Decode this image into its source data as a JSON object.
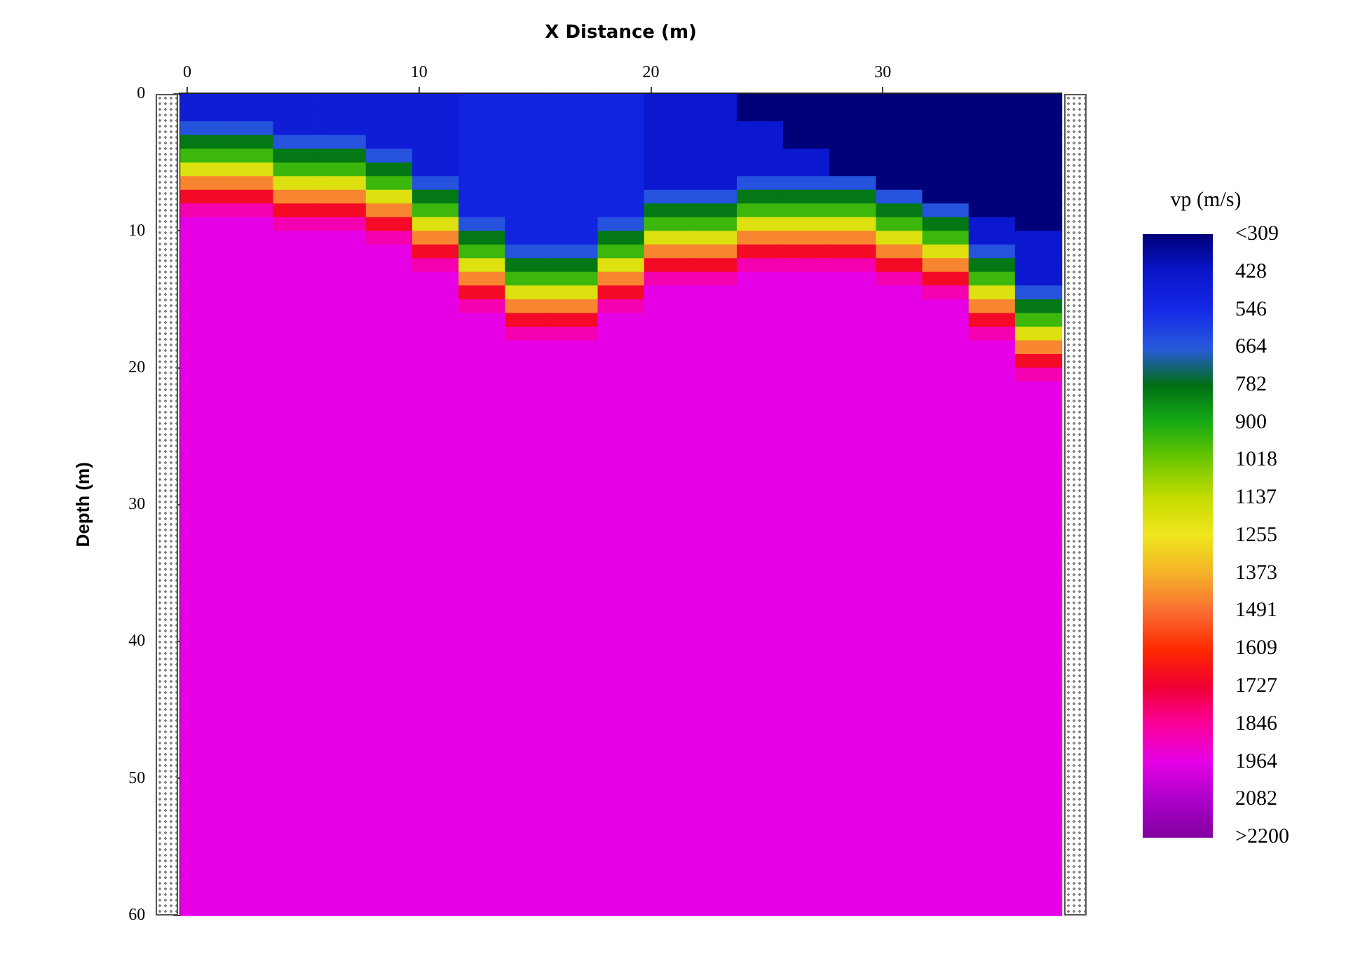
{
  "chart_data": {
    "type": "heatmap",
    "xlabel": "X Distance (m)",
    "ylabel": "Depth (m)",
    "clabel": "vp (m/s)",
    "x": [
      0.7,
      2.7,
      4.7,
      6.7,
      8.7,
      10.7,
      12.7,
      14.7,
      16.7,
      18.7,
      20.7,
      22.7,
      24.7,
      26.7,
      28.7,
      30.7,
      32.7,
      34.7,
      36.7
    ],
    "xlim": [
      -0.3,
      37.7
    ],
    "xticks": [
      0,
      10,
      20,
      30
    ],
    "ylim": [
      60,
      0
    ],
    "yticks": [
      0,
      10,
      20,
      30,
      40,
      50,
      60
    ],
    "clim": [
      309,
      2200
    ],
    "cticks": [
      {
        "value": 309,
        "label": "<309"
      },
      428,
      546,
      664,
      782,
      900,
      1018,
      1137,
      1255,
      1373,
      1491,
      1609,
      1727,
      1846,
      1964,
      2082,
      {
        "value": 2200,
        "label": ">2200"
      }
    ],
    "cells": [
      [
        480,
        480,
        480,
        480,
        480,
        480,
        520,
        520,
        520,
        520,
        450,
        450,
        300,
        300,
        300,
        300,
        300,
        300,
        300
      ],
      [
        480,
        480,
        480,
        480,
        480,
        480,
        520,
        520,
        520,
        520,
        450,
        450,
        300,
        300,
        300,
        300,
        300,
        300,
        300
      ],
      [
        650,
        650,
        480,
        480,
        480,
        480,
        520,
        520,
        520,
        520,
        450,
        450,
        450,
        300,
        300,
        300,
        300,
        300,
        300
      ],
      [
        800,
        800,
        650,
        650,
        480,
        480,
        520,
        520,
        520,
        520,
        450,
        450,
        450,
        300,
        300,
        300,
        300,
        300,
        300
      ],
      [
        950,
        950,
        800,
        800,
        650,
        480,
        520,
        520,
        520,
        520,
        450,
        450,
        450,
        450,
        300,
        300,
        300,
        300,
        300
      ],
      [
        1200,
        1200,
        950,
        950,
        800,
        480,
        520,
        520,
        520,
        520,
        450,
        450,
        450,
        450,
        300,
        300,
        300,
        300,
        300
      ],
      [
        1450,
        1450,
        1200,
        1200,
        950,
        650,
        520,
        520,
        520,
        520,
        450,
        450,
        650,
        650,
        650,
        300,
        300,
        300,
        300
      ],
      [
        1700,
        1700,
        1450,
        1450,
        1200,
        800,
        520,
        520,
        520,
        520,
        650,
        650,
        800,
        800,
        800,
        650,
        300,
        300,
        300
      ],
      [
        1880,
        1880,
        1700,
        1700,
        1450,
        950,
        520,
        520,
        520,
        520,
        800,
        800,
        950,
        950,
        950,
        800,
        650,
        300,
        300
      ],
      [
        1964,
        1964,
        1880,
        1880,
        1700,
        1200,
        650,
        520,
        520,
        650,
        950,
        950,
        1200,
        1200,
        1200,
        950,
        800,
        450,
        300
      ],
      [
        1964,
        1964,
        1964,
        1964,
        1880,
        1450,
        800,
        520,
        520,
        800,
        1200,
        1200,
        1450,
        1450,
        1450,
        1200,
        950,
        450,
        450
      ],
      [
        1964,
        1964,
        1964,
        1964,
        1964,
        1700,
        950,
        650,
        650,
        950,
        1450,
        1450,
        1700,
        1700,
        1700,
        1450,
        1200,
        650,
        450
      ],
      [
        1964,
        1964,
        1964,
        1964,
        1964,
        1880,
        1200,
        800,
        800,
        1200,
        1700,
        1700,
        1880,
        1880,
        1880,
        1700,
        1450,
        800,
        450
      ],
      [
        1964,
        1964,
        1964,
        1964,
        1964,
        1964,
        1450,
        950,
        950,
        1450,
        1880,
        1880,
        1964,
        1964,
        1964,
        1880,
        1700,
        950,
        450
      ],
      [
        1964,
        1964,
        1964,
        1964,
        1964,
        1964,
        1700,
        1200,
        1200,
        1700,
        1964,
        1964,
        1964,
        1964,
        1964,
        1964,
        1880,
        1200,
        650
      ],
      [
        1964,
        1964,
        1964,
        1964,
        1964,
        1964,
        1880,
        1450,
        1450,
        1880,
        1964,
        1964,
        1964,
        1964,
        1964,
        1964,
        1964,
        1450,
        800
      ],
      [
        1964,
        1964,
        1964,
        1964,
        1964,
        1964,
        1964,
        1700,
        1700,
        1964,
        1964,
        1964,
        1964,
        1964,
        1964,
        1964,
        1964,
        1700,
        950
      ],
      [
        1964,
        1964,
        1964,
        1964,
        1964,
        1964,
        1964,
        1880,
        1880,
        1964,
        1964,
        1964,
        1964,
        1964,
        1964,
        1964,
        1964,
        1880,
        1200
      ],
      [
        1964,
        1964,
        1964,
        1964,
        1964,
        1964,
        1964,
        1964,
        1964,
        1964,
        1964,
        1964,
        1964,
        1964,
        1964,
        1964,
        1964,
        1964,
        1450
      ],
      [
        1964,
        1964,
        1964,
        1964,
        1964,
        1964,
        1964,
        1964,
        1964,
        1964,
        1964,
        1964,
        1964,
        1964,
        1964,
        1964,
        1964,
        1964,
        1700
      ],
      [
        1964,
        1964,
        1964,
        1964,
        1964,
        1964,
        1964,
        1964,
        1964,
        1964,
        1964,
        1964,
        1964,
        1964,
        1964,
        1964,
        1964,
        1964,
        1880
      ],
      [
        1964,
        1964,
        1964,
        1964,
        1964,
        1964,
        1964,
        1964,
        1964,
        1964,
        1964,
        1964,
        1964,
        1964,
        1964,
        1964,
        1964,
        1964,
        1964
      ],
      [
        1964,
        1964,
        1964,
        1964,
        1964,
        1964,
        1964,
        1964,
        1964,
        1964,
        1964,
        1964,
        1964,
        1964,
        1964,
        1964,
        1964,
        1964,
        1964
      ],
      [
        1964,
        1964,
        1964,
        1964,
        1964,
        1964,
        1964,
        1964,
        1964,
        1964,
        1964,
        1964,
        1964,
        1964,
        1964,
        1964,
        1964,
        1964,
        1964
      ],
      [
        1964,
        1964,
        1964,
        1964,
        1964,
        1964,
        1964,
        1964,
        1964,
        1964,
        1964,
        1964,
        1964,
        1964,
        1964,
        1964,
        1964,
        1964,
        1964
      ],
      [
        1964,
        1964,
        1964,
        1964,
        1964,
        1964,
        1964,
        1964,
        1964,
        1964,
        1964,
        1964,
        1964,
        1964,
        1964,
        1964,
        1964,
        1964,
        1964
      ],
      [
        1964,
        1964,
        1964,
        1964,
        1964,
        1964,
        1964,
        1964,
        1964,
        1964,
        1964,
        1964,
        1964,
        1964,
        1964,
        1964,
        1964,
        1964,
        1964
      ],
      [
        1964,
        1964,
        1964,
        1964,
        1964,
        1964,
        1964,
        1964,
        1964,
        1964,
        1964,
        1964,
        1964,
        1964,
        1964,
        1964,
        1964,
        1964,
        1964
      ],
      [
        1964,
        1964,
        1964,
        1964,
        1964,
        1964,
        1964,
        1964,
        1964,
        1964,
        1964,
        1964,
        1964,
        1964,
        1964,
        1964,
        1964,
        1964,
        1964
      ],
      [
        1964,
        1964,
        1964,
        1964,
        1964,
        1964,
        1964,
        1964,
        1964,
        1964,
        1964,
        1964,
        1964,
        1964,
        1964,
        1964,
        1964,
        1964,
        1964
      ],
      [
        1964,
        1964,
        1964,
        1964,
        1964,
        1964,
        1964,
        1964,
        1964,
        1964,
        1964,
        1964,
        1964,
        1964,
        1964,
        1964,
        1964,
        1964,
        1964
      ],
      [
        1964,
        1964,
        1964,
        1964,
        1964,
        1964,
        1964,
        1964,
        1964,
        1964,
        1964,
        1964,
        1964,
        1964,
        1964,
        1964,
        1964,
        1964,
        1964
      ],
      [
        1964,
        1964,
        1964,
        1964,
        1964,
        1964,
        1964,
        1964,
        1964,
        1964,
        1964,
        1964,
        1964,
        1964,
        1964,
        1964,
        1964,
        1964,
        1964
      ],
      [
        1964,
        1964,
        1964,
        1964,
        1964,
        1964,
        1964,
        1964,
        1964,
        1964,
        1964,
        1964,
        1964,
        1964,
        1964,
        1964,
        1964,
        1964,
        1964
      ],
      [
        1964,
        1964,
        1964,
        1964,
        1964,
        1964,
        1964,
        1964,
        1964,
        1964,
        1964,
        1964,
        1964,
        1964,
        1964,
        1964,
        1964,
        1964,
        1964
      ],
      [
        1964,
        1964,
        1964,
        1964,
        1964,
        1964,
        1964,
        1964,
        1964,
        1964,
        1964,
        1964,
        1964,
        1964,
        1964,
        1964,
        1964,
        1964,
        1964
      ],
      [
        1964,
        1964,
        1964,
        1964,
        1964,
        1964,
        1964,
        1964,
        1964,
        1964,
        1964,
        1964,
        1964,
        1964,
        1964,
        1964,
        1964,
        1964,
        1964
      ],
      [
        1964,
        1964,
        1964,
        1964,
        1964,
        1964,
        1964,
        1964,
        1964,
        1964,
        1964,
        1964,
        1964,
        1964,
        1964,
        1964,
        1964,
        1964,
        1964
      ],
      [
        1964,
        1964,
        1964,
        1964,
        1964,
        1964,
        1964,
        1964,
        1964,
        1964,
        1964,
        1964,
        1964,
        1964,
        1964,
        1964,
        1964,
        1964,
        1964
      ],
      [
        1964,
        1964,
        1964,
        1964,
        1964,
        1964,
        1964,
        1964,
        1964,
        1964,
        1964,
        1964,
        1964,
        1964,
        1964,
        1964,
        1964,
        1964,
        1964
      ],
      [
        1964,
        1964,
        1964,
        1964,
        1964,
        1964,
        1964,
        1964,
        1964,
        1964,
        1964,
        1964,
        1964,
        1964,
        1964,
        1964,
        1964,
        1964,
        1964
      ],
      [
        1964,
        1964,
        1964,
        1964,
        1964,
        1964,
        1964,
        1964,
        1964,
        1964,
        1964,
        1964,
        1964,
        1964,
        1964,
        1964,
        1964,
        1964,
        1964
      ],
      [
        1964,
        1964,
        1964,
        1964,
        1964,
        1964,
        1964,
        1964,
        1964,
        1964,
        1964,
        1964,
        1964,
        1964,
        1964,
        1964,
        1964,
        1964,
        1964
      ],
      [
        1964,
        1964,
        1964,
        1964,
        1964,
        1964,
        1964,
        1964,
        1964,
        1964,
        1964,
        1964,
        1964,
        1964,
        1964,
        1964,
        1964,
        1964,
        1964
      ],
      [
        1964,
        1964,
        1964,
        1964,
        1964,
        1964,
        1964,
        1964,
        1964,
        1964,
        1964,
        1964,
        1964,
        1964,
        1964,
        1964,
        1964,
        1964,
        1964
      ],
      [
        1964,
        1964,
        1964,
        1964,
        1964,
        1964,
        1964,
        1964,
        1964,
        1964,
        1964,
        1964,
        1964,
        1964,
        1964,
        1964,
        1964,
        1964,
        1964
      ],
      [
        1964,
        1964,
        1964,
        1964,
        1964,
        1964,
        1964,
        1964,
        1964,
        1964,
        1964,
        1964,
        1964,
        1964,
        1964,
        1964,
        1964,
        1964,
        1964
      ],
      [
        1964,
        1964,
        1964,
        1964,
        1964,
        1964,
        1964,
        1964,
        1964,
        1964,
        1964,
        1964,
        1964,
        1964,
        1964,
        1964,
        1964,
        1964,
        1964
      ],
      [
        1964,
        1964,
        1964,
        1964,
        1964,
        1964,
        1964,
        1964,
        1964,
        1964,
        1964,
        1964,
        1964,
        1964,
        1964,
        1964,
        1964,
        1964,
        1964
      ],
      [
        1964,
        1964,
        1964,
        1964,
        1964,
        1964,
        1964,
        1964,
        1964,
        1964,
        1964,
        1964,
        1964,
        1964,
        1964,
        1964,
        1964,
        1964,
        1964
      ],
      [
        1964,
        1964,
        1964,
        1964,
        1964,
        1964,
        1964,
        1964,
        1964,
        1964,
        1964,
        1964,
        1964,
        1964,
        1964,
        1964,
        1964,
        1964,
        1964
      ],
      [
        1964,
        1964,
        1964,
        1964,
        1964,
        1964,
        1964,
        1964,
        1964,
        1964,
        1964,
        1964,
        1964,
        1964,
        1964,
        1964,
        1964,
        1964,
        1964
      ],
      [
        1964,
        1964,
        1964,
        1964,
        1964,
        1964,
        1964,
        1964,
        1964,
        1964,
        1964,
        1964,
        1964,
        1964,
        1964,
        1964,
        1964,
        1964,
        1964
      ],
      [
        1964,
        1964,
        1964,
        1964,
        1964,
        1964,
        1964,
        1964,
        1964,
        1964,
        1964,
        1964,
        1964,
        1964,
        1964,
        1964,
        1964,
        1964,
        1964
      ],
      [
        1964,
        1964,
        1964,
        1964,
        1964,
        1964,
        1964,
        1964,
        1964,
        1964,
        1964,
        1964,
        1964,
        1964,
        1964,
        1964,
        1964,
        1964,
        1964
      ],
      [
        1964,
        1964,
        1964,
        1964,
        1964,
        1964,
        1964,
        1964,
        1964,
        1964,
        1964,
        1964,
        1964,
        1964,
        1964,
        1964,
        1964,
        1964,
        1964
      ],
      [
        1964,
        1964,
        1964,
        1964,
        1964,
        1964,
        1964,
        1964,
        1964,
        1964,
        1964,
        1964,
        1964,
        1964,
        1964,
        1964,
        1964,
        1964,
        1964
      ],
      [
        1964,
        1964,
        1964,
        1964,
        1964,
        1964,
        1964,
        1964,
        1964,
        1964,
        1964,
        1964,
        1964,
        1964,
        1964,
        1964,
        1964,
        1964,
        1964
      ],
      [
        1964,
        1964,
        1964,
        1964,
        1964,
        1964,
        1964,
        1964,
        1964,
        1964,
        1964,
        1964,
        1964,
        1964,
        1964,
        1964,
        1964,
        1964,
        1964
      ],
      [
        1964,
        1964,
        1964,
        1964,
        1964,
        1964,
        1964,
        1964,
        1964,
        1964,
        1964,
        1964,
        1964,
        1964,
        1964,
        1964,
        1964,
        1964,
        1964
      ]
    ]
  }
}
